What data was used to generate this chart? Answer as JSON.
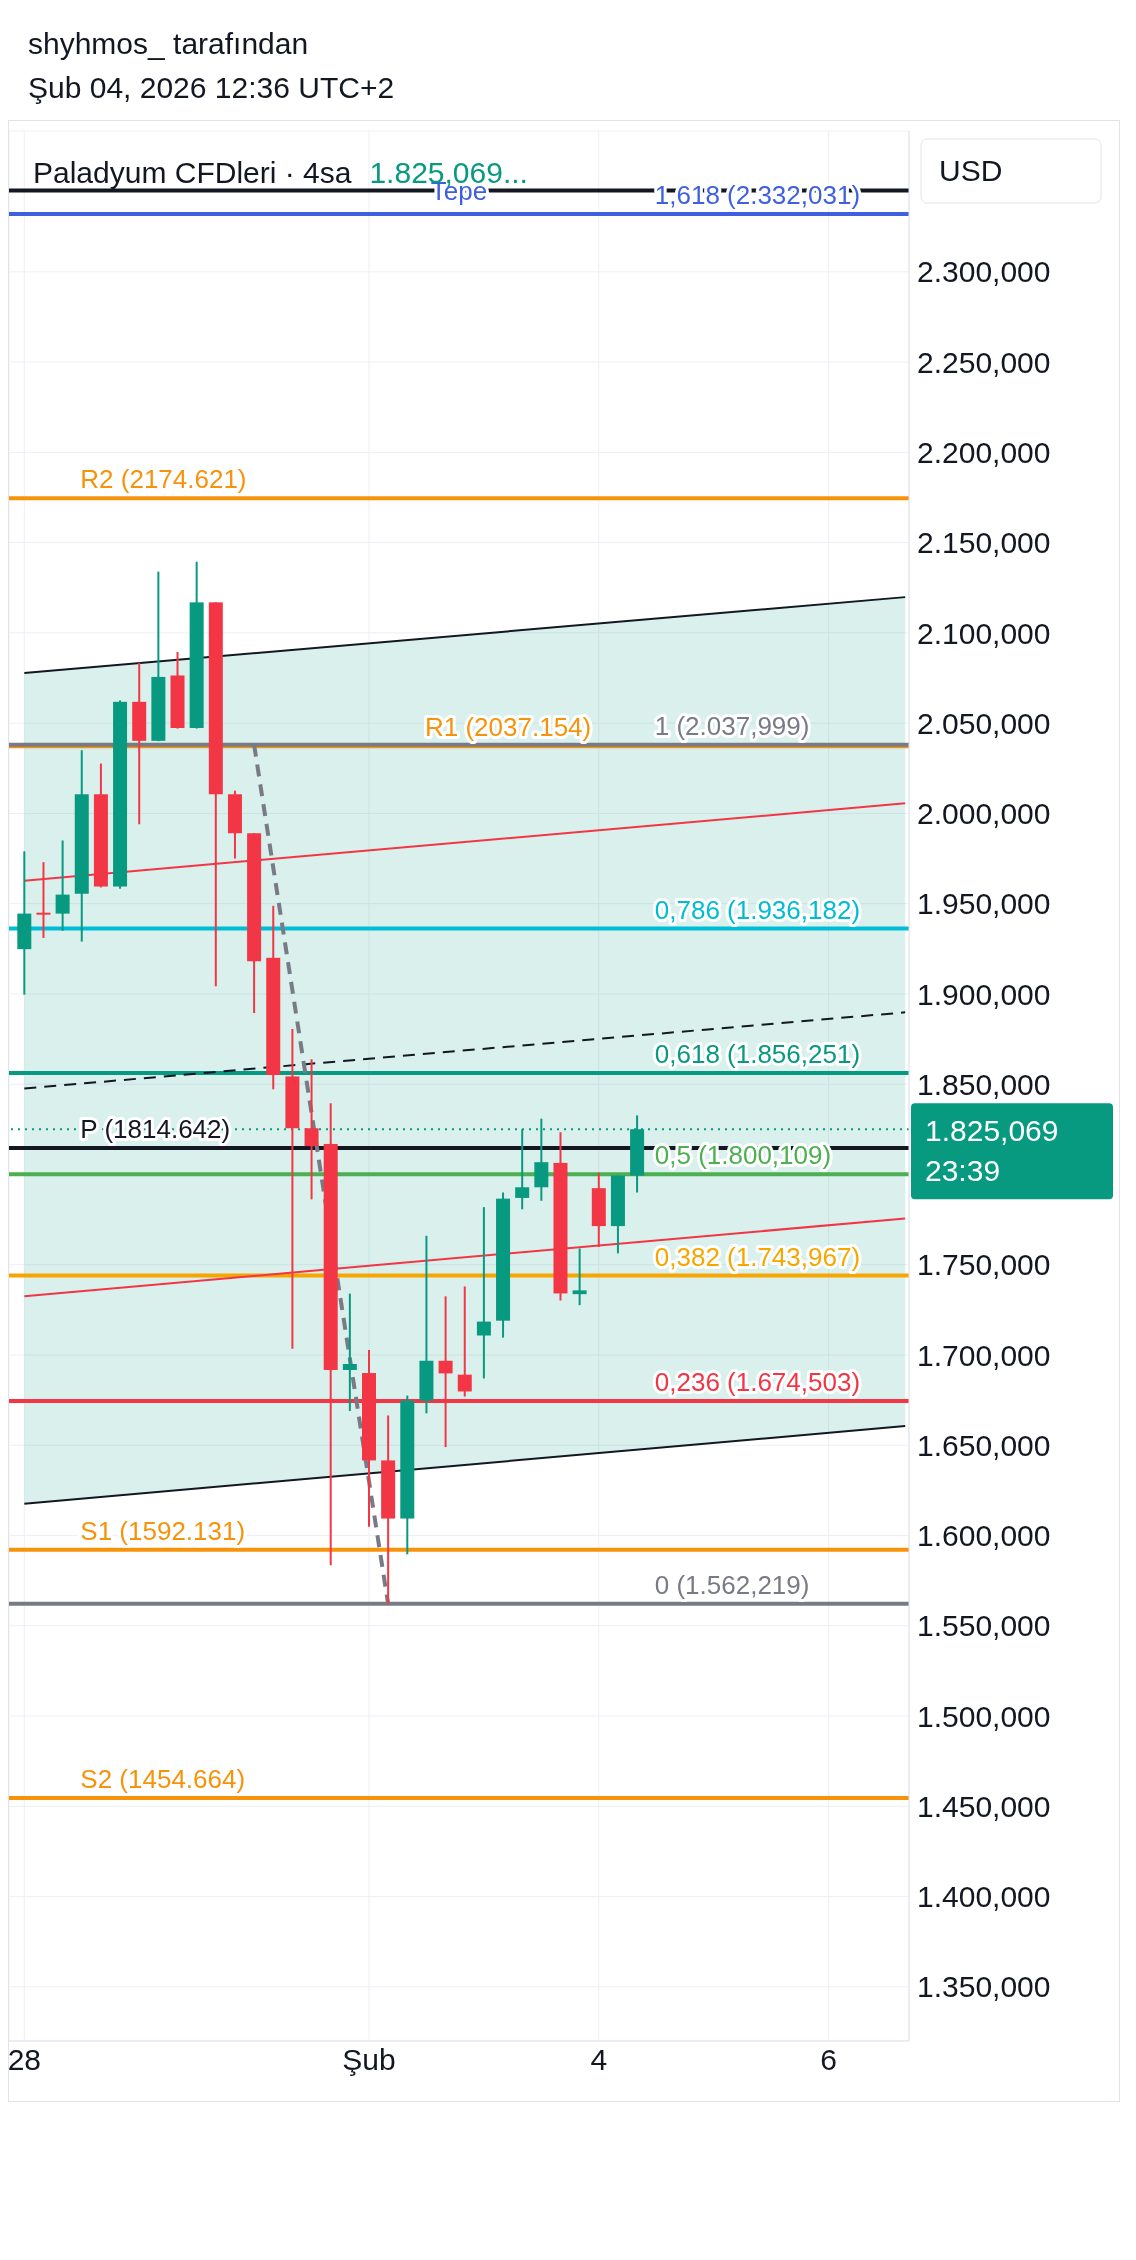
{
  "chart_data": {
    "type": "candlestick",
    "title": "Paladyum CFDleri · 4sa",
    "subtitle": "1.825,069...",
    "ylabel": "USD",
    "categories": [
      "28",
      null,
      null,
      null,
      null,
      null,
      null,
      null,
      null,
      null,
      null,
      null,
      null,
      null,
      null,
      null,
      null,
      null,
      "Şub",
      null,
      null,
      null,
      null,
      null,
      null,
      null,
      null,
      null,
      null,
      null,
      "4",
      null,
      null,
      null,
      null,
      null,
      null,
      null,
      null,
      null,
      null,
      null,
      "6",
      null,
      null,
      null,
      null
    ],
    "ohlc": [
      [
        1924.8,
        1979,
        1899.6,
        1944.5
      ],
      [
        1945,
        1973,
        1931,
        1944
      ],
      [
        1944.5,
        1985,
        1935,
        1955
      ],
      [
        1955.5,
        2035,
        1929,
        2010.6
      ],
      [
        2010.6,
        2027.6,
        1959,
        1959.5
      ],
      [
        1959.5,
        2062.6,
        1958.3,
        2061.8
      ],
      [
        2061.8,
        2083.5,
        1994,
        2040.2
      ],
      [
        2040.2,
        2133.9,
        2040,
        2075.6
      ],
      [
        2076.4,
        2089.4,
        2047,
        2047.3
      ],
      [
        2047.3,
        2139.4,
        2047,
        2116.9
      ],
      [
        2116.9,
        2116.9,
        1904.3,
        2010.6
      ],
      [
        2010.6,
        2012.6,
        1975,
        1989
      ],
      [
        1989,
        1989,
        1889.4,
        1918.1
      ],
      [
        1920,
        1948.8,
        1847.2,
        1855.1
      ],
      [
        1854.3,
        1880.6,
        1703.5,
        1825.6
      ],
      [
        1825.6,
        1863.8,
        1786.2,
        1815.7
      ],
      [
        1816.9,
        1839.4,
        1583.5,
        1691.7
      ],
      [
        1691.7,
        1734,
        1669,
        1695
      ],
      [
        1690,
        1702.7,
        1604.8,
        1641.6
      ],
      [
        1641.6,
        1666.5,
        1562.2,
        1609.4
      ],
      [
        1609.4,
        1677.5,
        1589.6,
        1674.7
      ],
      [
        1674.7,
        1766,
        1667.7,
        1696.8
      ],
      [
        1696.8,
        1732.5,
        1649,
        1689.8
      ],
      [
        1689.1,
        1738,
        1677,
        1679.8
      ],
      [
        1710.8,
        1781.9,
        1687,
        1718.5
      ],
      [
        1719,
        1790,
        1709.6,
        1786.6
      ],
      [
        1787,
        1825,
        1780.7,
        1792.9
      ],
      [
        1792.9,
        1830.9,
        1785.4,
        1806.8
      ],
      [
        1806.4,
        1823.4,
        1730.2,
        1734.1
      ],
      [
        1733.7,
        1759,
        1727.6,
        1735.8
      ],
      [
        1792.4,
        1801,
        1759.8,
        1771.4
      ],
      [
        1771.4,
        1799.4,
        1756.3,
        1799.4
      ],
      [
        1799.4,
        1832.7,
        1790,
        1825.069
      ],
      null,
      null,
      null,
      null,
      null,
      null,
      null,
      null,
      null,
      null,
      null,
      null,
      null,
      null
    ],
    "colors": [
      "#089981",
      "#f23645",
      "#089981",
      "#089981",
      "#f23645",
      "#089981",
      "#f23645",
      "#089981",
      "#f23645",
      "#089981",
      "#f23645",
      "#f23645",
      "#f23645",
      "#f23645",
      "#f23645",
      "#f23645",
      "#f23645",
      "#089981",
      "#f23645",
      "#f23645",
      "#089981",
      "#089981",
      "#f23645",
      "#f23645",
      "#089981",
      "#089981",
      "#089981",
      "#089981",
      "#f23645",
      "#089981",
      "#f23645",
      "#089981",
      "#089981",
      null,
      null,
      null,
      null,
      null,
      null,
      null,
      null,
      null,
      null,
      null,
      null,
      null,
      null
    ],
    "series": [
      {
        "type": "line",
        "color": "#131722",
        "line_style": "dashed",
        "values": [
          1847.6,
          null,
          null,
          null,
          null,
          null,
          null,
          null,
          null,
          null,
          null,
          null,
          null,
          null,
          null,
          null,
          null,
          null,
          null,
          null,
          null,
          null,
          null,
          null,
          null,
          null,
          null,
          null,
          null,
          null,
          null,
          null,
          null,
          null,
          null,
          null,
          null,
          null,
          null,
          null,
          null,
          null,
          null,
          null,
          null,
          null,
          1889.8
        ],
        "lower": [
          1617.6,
          null,
          null,
          null,
          null,
          null,
          null,
          null,
          null,
          null,
          null,
          null,
          null,
          null,
          null,
          null,
          null,
          null,
          null,
          null,
          null,
          null,
          null,
          null,
          null,
          null,
          null,
          null,
          null,
          null,
          null,
          null,
          null,
          null,
          null,
          null,
          null,
          null,
          null,
          null,
          null,
          null,
          null,
          null,
          null,
          null,
          1660.6
        ],
        "upper": [
          2077.8,
          null,
          null,
          null,
          null,
          null,
          null,
          null,
          null,
          null,
          null,
          null,
          null,
          null,
          null,
          null,
          null,
          null,
          null,
          null,
          null,
          null,
          null,
          null,
          null,
          null,
          null,
          null,
          null,
          null,
          null,
          null,
          null,
          null,
          null,
          null,
          null,
          null,
          null,
          null,
          null,
          null,
          null,
          null,
          null,
          null,
          2119.8
        ]
      },
      {
        "type": "line",
        "color": "#131722",
        "line_style": "solid",
        "values": [
          2077.8,
          null,
          null,
          null,
          null,
          null,
          null,
          null,
          null,
          null,
          null,
          null,
          null,
          null,
          null,
          null,
          null,
          null,
          null,
          null,
          null,
          null,
          null,
          null,
          null,
          null,
          null,
          null,
          null,
          null,
          null,
          null,
          null,
          null,
          null,
          null,
          null,
          null,
          null,
          null,
          null,
          null,
          null,
          null,
          null,
          null,
          2119.8
        ]
      },
      {
        "type": "line",
        "color": "#131722",
        "line_style": "solid",
        "values": [
          1617.6,
          null,
          null,
          null,
          null,
          null,
          null,
          null,
          null,
          null,
          null,
          null,
          null,
          null,
          null,
          null,
          null,
          null,
          null,
          null,
          null,
          null,
          null,
          null,
          null,
          null,
          null,
          null,
          null,
          null,
          null,
          null,
          null,
          null,
          null,
          null,
          null,
          null,
          null,
          null,
          null,
          null,
          null,
          null,
          null,
          null,
          1660.6
        ]
      },
      {
        "type": "line",
        "color": "#f23645",
        "line_style": "solid",
        "values": [
          1962.7,
          null,
          null,
          null,
          null,
          null,
          null,
          null,
          null,
          null,
          null,
          null,
          null,
          null,
          null,
          null,
          null,
          null,
          null,
          null,
          null,
          null,
          null,
          null,
          null,
          null,
          null,
          null,
          null,
          null,
          null,
          null,
          null,
          null,
          null,
          null,
          null,
          null,
          null,
          null,
          null,
          null,
          null,
          null,
          null,
          null,
          2005.6
        ]
      },
      {
        "type": "line",
        "color": "#f23645",
        "line_style": "solid",
        "values": [
          1732.6,
          null,
          null,
          null,
          null,
          null,
          null,
          null,
          null,
          null,
          null,
          null,
          null,
          null,
          null,
          null,
          null,
          null,
          null,
          null,
          null,
          null,
          null,
          null,
          null,
          null,
          null,
          null,
          null,
          null,
          null,
          null,
          null,
          null,
          null,
          null,
          null,
          null,
          null,
          null,
          null,
          null,
          null,
          null,
          null,
          null,
          1775.6
        ]
      },
      {
        "type": "line",
        "color": "#787b86",
        "line_style": "dashed",
        "values": [
          null,
          null,
          null,
          null,
          null,
          null,
          null,
          null,
          null,
          null,
          null,
          null,
          2038,
          null,
          null,
          null,
          null,
          null,
          null,
          1562,
          null,
          null,
          null,
          null,
          null,
          null,
          null,
          null,
          null,
          null,
          null,
          null,
          null,
          null,
          null,
          null,
          null,
          null,
          null,
          null,
          null,
          null,
          null,
          null,
          null,
          null,
          null
        ]
      }
    ],
    "ylim": [
      1320,
      2378
    ],
    "yticks": [
      {
        "value": 1350,
        "label": "1.350,000"
      },
      {
        "value": 1400,
        "label": "1.400,000"
      },
      {
        "value": 1450,
        "label": "1.450,000"
      },
      {
        "value": 1500,
        "label": "1.500,000"
      },
      {
        "value": 1550,
        "label": "1.550,000"
      },
      {
        "value": 1600,
        "label": "1.600,000"
      },
      {
        "value": 1650,
        "label": "1.650,000"
      },
      {
        "value": 1700,
        "label": "1.700,000"
      },
      {
        "value": 1750,
        "label": "1.750,000"
      },
      {
        "value": 1850,
        "label": "1.850,000"
      },
      {
        "value": 1900,
        "label": "1.900,000"
      },
      {
        "value": 1950,
        "label": "1.950,000"
      },
      {
        "value": 2000,
        "label": "2.000,000"
      },
      {
        "value": 2050,
        "label": "2.050,000"
      },
      {
        "value": 2100,
        "label": "2.100,000"
      },
      {
        "value": 2150,
        "label": "2.150,000"
      },
      {
        "value": 2200,
        "label": "2.200,000"
      },
      {
        "value": 2250,
        "label": "2.250,000"
      },
      {
        "value": 2300,
        "label": "2.300,000"
      }
    ],
    "ref_lines": [
      {
        "axis": "y",
        "value": 2345,
        "label": "Tepe",
        "color": "#131722",
        "line_style": "solid"
      },
      {
        "axis": "y",
        "value": 2332.031,
        "color": "#3d5fe0",
        "line_style": "solid"
      },
      {
        "axis": "y",
        "value": 2174.621,
        "color": "#f7930a",
        "line_style": "solid"
      },
      {
        "axis": "y",
        "value": 2037.154,
        "color": "#f7930a",
        "line_style": "solid"
      },
      {
        "axis": "y",
        "value": 2037.999,
        "color": "#787b86",
        "line_style": "solid"
      },
      {
        "axis": "y",
        "value": 1936.182,
        "color": "#00bcd4",
        "line_style": "solid"
      },
      {
        "axis": "y",
        "value": 1856.251,
        "color": "#089981",
        "line_style": "solid"
      },
      {
        "axis": "y",
        "value": 1825.069,
        "label": "1.825,069",
        "color": "#089981",
        "line_style": "dotted"
      },
      {
        "axis": "y",
        "value": 1814.642,
        "color": "#131722",
        "line_style": "solid"
      },
      {
        "axis": "y",
        "value": 1800.109,
        "color": "#4caf50",
        "line_style": "solid"
      },
      {
        "axis": "y",
        "value": 1743.967,
        "color": "#f7a600",
        "line_style": "solid"
      },
      {
        "axis": "y",
        "value": 1674.503,
        "color": "#f23645",
        "line_style": "solid"
      },
      {
        "axis": "y",
        "value": 1592.131,
        "color": "#f7930a",
        "line_style": "solid"
      },
      {
        "axis": "y",
        "value": 1562.219,
        "color": "#787b86",
        "line_style": "solid"
      },
      {
        "axis": "y",
        "value": 1454.664,
        "color": "#f7930a",
        "line_style": "solid"
      }
    ],
    "annotations": [
      "shyhmos_ tarafından",
      "Şub 04, 2026 12:36 UTC+2",
      "23:39",
      {
        "text": "R2 (2174.621)",
        "x": "28",
        "y": 2174.621
      },
      {
        "text": "R1 (2037.154)",
        "x": "Şub",
        "y": 2037.154
      },
      {
        "text": "P (1814.642)",
        "x": "28",
        "y": 1814.642
      },
      {
        "text": "S1 (1592.131)",
        "x": "28",
        "y": 1592.131
      },
      {
        "text": "S2 (1454.664)",
        "x": "28",
        "y": 1454.664
      },
      {
        "text": "1,618 (2.332,031)",
        "x": "4",
        "y": 2332.031
      },
      {
        "text": "1 (2.037,999)",
        "x": "4",
        "y": 2037.999
      },
      {
        "text": "0,786 (1.936,182)",
        "x": "4",
        "y": 1936.182
      },
      {
        "text": "0,618 (1.856,251)",
        "x": "4",
        "y": 1856.251
      },
      {
        "text": "0,5 (1.800,109)",
        "x": "4",
        "y": 1800.109
      },
      {
        "text": "0,382 (1.743,967)",
        "x": "4",
        "y": 1743.967
      },
      {
        "text": "0,236 (1.674,503)",
        "x": "4",
        "y": 1674.503
      },
      {
        "text": "0 (1.562,219)",
        "x": "4",
        "y": 1562.219
      }
    ],
    "grid": true,
    "legend": false
  }
}
